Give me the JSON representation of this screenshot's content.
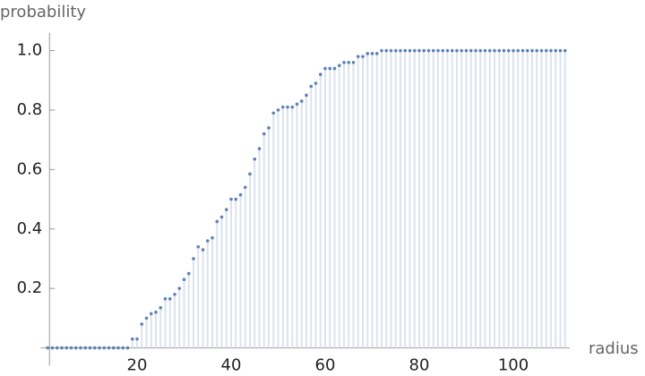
{
  "chart_data": {
    "type": "discrete",
    "xlabel": "radius",
    "ylabel": "probability",
    "x": [
      1,
      2,
      3,
      4,
      5,
      6,
      7,
      8,
      9,
      10,
      11,
      12,
      13,
      14,
      15,
      16,
      17,
      18,
      19,
      20,
      21,
      22,
      23,
      24,
      25,
      26,
      27,
      28,
      29,
      30,
      31,
      32,
      33,
      34,
      35,
      36,
      37,
      38,
      39,
      40,
      41,
      42,
      43,
      44,
      45,
      46,
      47,
      48,
      49,
      50,
      51,
      52,
      53,
      54,
      55,
      56,
      57,
      58,
      59,
      60,
      61,
      62,
      63,
      64,
      65,
      66,
      67,
      68,
      69,
      70,
      71,
      72,
      73,
      74,
      75,
      76,
      77,
      78,
      79,
      80,
      81,
      82,
      83,
      84,
      85,
      86,
      87,
      88,
      89,
      90,
      91,
      92,
      93,
      94,
      95,
      96,
      97,
      98,
      99,
      100,
      101,
      102,
      103,
      104,
      105,
      106,
      107,
      108,
      109,
      110,
      111
    ],
    "values": [
      0,
      0,
      0,
      0,
      0,
      0,
      0,
      0,
      0,
      0,
      0,
      0,
      0,
      0,
      0,
      0,
      0,
      0,
      0.03,
      0.03,
      0.08,
      0.1,
      0.115,
      0.12,
      0.135,
      0.165,
      0.165,
      0.18,
      0.2,
      0.23,
      0.25,
      0.3,
      0.34,
      0.33,
      0.36,
      0.37,
      0.425,
      0.44,
      0.465,
      0.5,
      0.5,
      0.515,
      0.54,
      0.585,
      0.635,
      0.67,
      0.72,
      0.74,
      0.79,
      0.8,
      0.81,
      0.81,
      0.81,
      0.82,
      0.83,
      0.85,
      0.88,
      0.89,
      0.92,
      0.94,
      0.94,
      0.94,
      0.95,
      0.96,
      0.96,
      0.96,
      0.98,
      0.98,
      0.99,
      0.99,
      0.99,
      1,
      1,
      1,
      1,
      1,
      1,
      1,
      1,
      1,
      1,
      1,
      1,
      1,
      1,
      1,
      1,
      1,
      1,
      1,
      1,
      1,
      1,
      1,
      1,
      1,
      1,
      1,
      1,
      1,
      1,
      1,
      1,
      1,
      1,
      1,
      1,
      1,
      1,
      1,
      1
    ],
    "color": "#5e81b5",
    "fill_color": "#dbe3ec",
    "xlim": [
      1,
      112
    ],
    "ylim": [
      -0.06,
      1.06
    ],
    "xticks": [
      20,
      40,
      60,
      80,
      100
    ],
    "yticks": [
      0.2,
      0.4,
      0.6,
      0.8,
      {
        "value": 1,
        "label": "1.0"
      }
    ]
  }
}
